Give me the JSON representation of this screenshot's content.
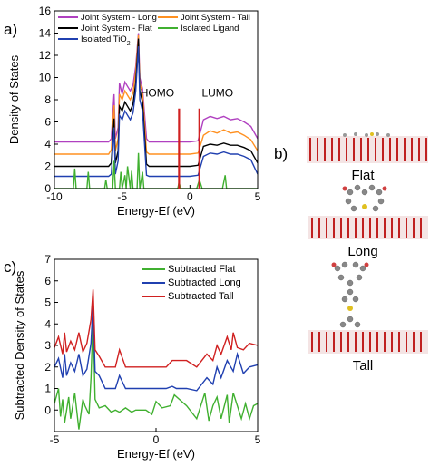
{
  "panels": {
    "a": "a)",
    "b": "b)",
    "c": "c)"
  },
  "colors": {
    "long": "#b040c0",
    "tall": "#ff9020",
    "flat": "#000000",
    "tio2": "#2040b0",
    "ligand": "#40b030",
    "homo_lumo": "#d02020",
    "sub_flat": "#40b030",
    "sub_long": "#2040b0",
    "sub_tall": "#d02020"
  },
  "structures": {
    "flat": "Flat",
    "long": "Long",
    "tall": "Tall"
  },
  "chart_data": [
    {
      "type": "line",
      "panel": "a",
      "title": "",
      "xlabel": "Energy-Ef (eV)",
      "ylabel": "Density of States",
      "xlim": [
        -10,
        5
      ],
      "ylim": [
        0,
        16
      ],
      "xticks": [
        -10,
        -5,
        0,
        5
      ],
      "yticks": [
        0,
        2,
        4,
        6,
        8,
        10,
        12,
        14,
        16
      ],
      "annotations": [
        {
          "text": "HOMO",
          "x": -0.8
        },
        {
          "text": "LUMO",
          "x": 0.7
        }
      ],
      "legend": [
        {
          "label": "Joint System - Long",
          "key": "long"
        },
        {
          "label": "Joint System - Tall",
          "key": "tall"
        },
        {
          "label": "Joint System - Flat",
          "key": "flat"
        },
        {
          "label": "Isolated Ligand",
          "key": "ligand"
        },
        {
          "label": "Isolated TiO",
          "sub": "2",
          "key": "tio2"
        }
      ],
      "series": [
        {
          "name": "Joint System - Long",
          "key": "long",
          "x": [
            -10,
            -6,
            -5.8,
            -5.6,
            -5.5,
            -5.3,
            -5.2,
            -5,
            -4.8,
            -4.6,
            -4.4,
            -4.2,
            -4,
            -3.8,
            -3.7,
            -3.5,
            -3.2,
            -3,
            0,
            0.6,
            1,
            1.5,
            2,
            2.5,
            3,
            3.5,
            4,
            4.5,
            5
          ],
          "y": [
            4.2,
            4.2,
            4.5,
            8.5,
            4.5,
            5.5,
            9.5,
            8.5,
            9.6,
            9.2,
            8.8,
            9.3,
            11,
            14,
            10,
            9,
            4.5,
            4.2,
            4.2,
            4.3,
            6.2,
            6.5,
            6.3,
            6.5,
            6.2,
            6.3,
            6,
            5.6,
            4.5
          ]
        },
        {
          "name": "Joint System - Tall",
          "key": "tall",
          "x": [
            -10,
            -6,
            -5.8,
            -5.6,
            -5.5,
            -5.3,
            -5.2,
            -5,
            -4.8,
            -4.6,
            -4.4,
            -4.2,
            -4,
            -3.8,
            -3.7,
            -3.5,
            -3.2,
            -3,
            0,
            0.6,
            1,
            1.5,
            2,
            2.5,
            3,
            3.5,
            4,
            4.5,
            5
          ],
          "y": [
            3.1,
            3.1,
            3.5,
            7.5,
            3.4,
            4.5,
            8.5,
            8,
            8.8,
            8.4,
            8,
            8.6,
            10.5,
            13.8,
            9.5,
            8.5,
            3.3,
            3.1,
            3.1,
            3.2,
            4.8,
            5.2,
            5,
            5.3,
            5,
            5.1,
            4.8,
            4.4,
            3.4
          ]
        },
        {
          "name": "Joint System - Flat",
          "key": "flat",
          "x": [
            -10,
            -6,
            -5.8,
            -5.6,
            -5.5,
            -5.3,
            -5.2,
            -5,
            -4.8,
            -4.6,
            -4.4,
            -4.2,
            -4,
            -3.8,
            -3.7,
            -3.5,
            -3.2,
            -3,
            0,
            0.6,
            1,
            1.5,
            2,
            2.5,
            3,
            3.5,
            4,
            4.5,
            5
          ],
          "y": [
            2,
            2,
            2.3,
            6.3,
            2.3,
            3.4,
            7.4,
            7,
            7.8,
            7.4,
            7,
            7.6,
            9.5,
            13.5,
            8.8,
            7.8,
            2.2,
            2,
            2,
            2.1,
            3.8,
            4,
            3.9,
            4.1,
            3.9,
            3.9,
            3.7,
            3.4,
            2.3
          ]
        },
        {
          "name": "Isolated TiO2",
          "key": "tio2",
          "x": [
            -10,
            -6,
            -5.8,
            -5.6,
            -5.5,
            -5.3,
            -5.2,
            -5,
            -4.8,
            -4.6,
            -4.4,
            -4.2,
            -4,
            -3.8,
            -3.7,
            -3.5,
            -3.2,
            -3,
            0,
            0.6,
            1,
            1.5,
            2,
            2.5,
            3,
            3.5,
            4,
            4.5,
            5
          ],
          "y": [
            1.1,
            1.1,
            1.3,
            5.5,
            1.3,
            2.5,
            6.6,
            6.2,
            7,
            6.6,
            6.2,
            6.8,
            8.8,
            12.8,
            8,
            7,
            1.2,
            1.1,
            1.1,
            1.2,
            2.9,
            3.2,
            3.1,
            3.3,
            3.1,
            3.1,
            2.9,
            2.6,
            1.3
          ]
        },
        {
          "name": "Isolated Ligand",
          "key": "ligand",
          "x": [
            -10,
            -9,
            -8.6,
            -8.5,
            -8.4,
            -8,
            -7.6,
            -7.5,
            -7.4,
            -6.3,
            -6.2,
            -6.1,
            -5.7,
            -5.6,
            -5.5,
            -5.2,
            -5.1,
            -5,
            -4.8,
            -4.7,
            -4.6,
            -4.4,
            -4.3,
            -4.2,
            -3.9,
            -3.8,
            -3.7,
            -3.5,
            -3.4,
            -3.3,
            -2.8,
            -2,
            -0.9,
            -0.8,
            -0.7,
            0.5,
            0.7,
            0.9,
            2,
            2.4,
            2.6,
            2.7,
            3,
            4,
            5
          ],
          "y": [
            0,
            0,
            0,
            1.8,
            0,
            0,
            0,
            1.5,
            0,
            0,
            0.8,
            0,
            0,
            2.5,
            0,
            0,
            1.5,
            0,
            1.2,
            0,
            2,
            0,
            1.6,
            0,
            0,
            3.2,
            0,
            1.5,
            0,
            0,
            0,
            0,
            0,
            0.6,
            0,
            0,
            0.8,
            0,
            0,
            0,
            1.2,
            0,
            0,
            0,
            0
          ]
        }
      ]
    },
    {
      "type": "line",
      "panel": "c",
      "title": "",
      "xlabel": "Energy-Ef (eV)",
      "ylabel": "Subtracted Density of States",
      "xlim": [
        -5,
        5
      ],
      "ylim": [
        -1,
        7
      ],
      "xticks": [
        -5,
        0,
        5
      ],
      "yticks": [
        0,
        1,
        2,
        3,
        4,
        5,
        6,
        7
      ],
      "legend": [
        {
          "label": "Subtracted Flat",
          "key": "sub_flat"
        },
        {
          "label": "Subtracted Long",
          "key": "sub_long"
        },
        {
          "label": "Subtracted Tall",
          "key": "sub_tall"
        }
      ],
      "series": [
        {
          "name": "Subtracted Flat",
          "key": "sub_flat",
          "x": [
            -5,
            -4.8,
            -4.7,
            -4.6,
            -4.5,
            -4.3,
            -4.2,
            -4,
            -3.8,
            -3.6,
            -3.5,
            -3.3,
            -3.2,
            -3.1,
            -3,
            -2.8,
            -2.5,
            -2.2,
            -2,
            -1.8,
            -1.5,
            -1.2,
            -1,
            -0.5,
            -0.2,
            0,
            0.3,
            0.7,
            0.9,
            1.5,
            2,
            2.4,
            2.6,
            2.8,
            3,
            3.2,
            3.5,
            3.6,
            3.8,
            4,
            4.2,
            4.4,
            4.6,
            4.8,
            5
          ],
          "y": [
            0.3,
            1,
            -0.3,
            0.5,
            -0.6,
            0.6,
            -0.4,
            0.8,
            -0.9,
            0.5,
            0.2,
            -0.2,
            1.5,
            4.4,
            0.5,
            0.1,
            0.2,
            -0.1,
            0,
            -0.1,
            0.1,
            -0.1,
            0,
            0,
            -0.2,
            0.4,
            0.1,
            0.2,
            0.7,
            0.2,
            -0.4,
            0.8,
            -0.5,
            0.2,
            0.6,
            -0.4,
            0.7,
            -0.6,
            0.8,
            0.2,
            -0.4,
            0.3,
            -0.4,
            0.2,
            0.3
          ]
        },
        {
          "name": "Subtracted Long",
          "key": "sub_long",
          "x": [
            -5,
            -4.8,
            -4.6,
            -4.5,
            -4.4,
            -4.2,
            -4,
            -3.8,
            -3.6,
            -3.4,
            -3.2,
            -3.1,
            -3,
            -2.8,
            -2.5,
            -2.2,
            -2,
            -1.8,
            -1.5,
            -1.2,
            -1,
            -0.5,
            0,
            0.5,
            0.8,
            1,
            1.5,
            2,
            2.5,
            2.8,
            3,
            3.2,
            3.5,
            3.8,
            4,
            4.3,
            4.6,
            5
          ],
          "y": [
            2,
            2.4,
            1.5,
            2.6,
            1.6,
            2.2,
            1.8,
            2.6,
            1.6,
            1.9,
            3.1,
            5,
            1.8,
            1.6,
            1,
            1,
            1,
            1.6,
            1,
            1,
            1,
            1,
            1,
            1,
            1.1,
            1,
            1,
            0.9,
            1.5,
            1.2,
            2,
            1.5,
            2.3,
            1.8,
            2.6,
            1.7,
            2,
            2.1
          ]
        },
        {
          "name": "Subtracted Tall",
          "key": "sub_tall",
          "x": [
            -5,
            -4.8,
            -4.6,
            -4.5,
            -4.4,
            -4.2,
            -4,
            -3.8,
            -3.6,
            -3.4,
            -3.2,
            -3.1,
            -3,
            -2.8,
            -2.5,
            -2.2,
            -2,
            -1.8,
            -1.5,
            -1.2,
            -1,
            -0.5,
            0,
            0.5,
            0.8,
            1,
            1.5,
            2,
            2.5,
            2.8,
            3,
            3.2,
            3.5,
            3.7,
            3.8,
            4,
            4.3,
            4.6,
            5
          ],
          "y": [
            2.9,
            3.4,
            2.6,
            3.6,
            2.7,
            3.2,
            2.8,
            3.6,
            2.7,
            3.1,
            4.2,
            5.6,
            2.8,
            2.5,
            2,
            2,
            2,
            2.8,
            2,
            2,
            2,
            2,
            2,
            2,
            2.3,
            2.3,
            2.3,
            2,
            2.6,
            2.3,
            3,
            2.6,
            3.4,
            2.8,
            3.6,
            2.9,
            2.8,
            3.1,
            3
          ]
        }
      ]
    }
  ]
}
